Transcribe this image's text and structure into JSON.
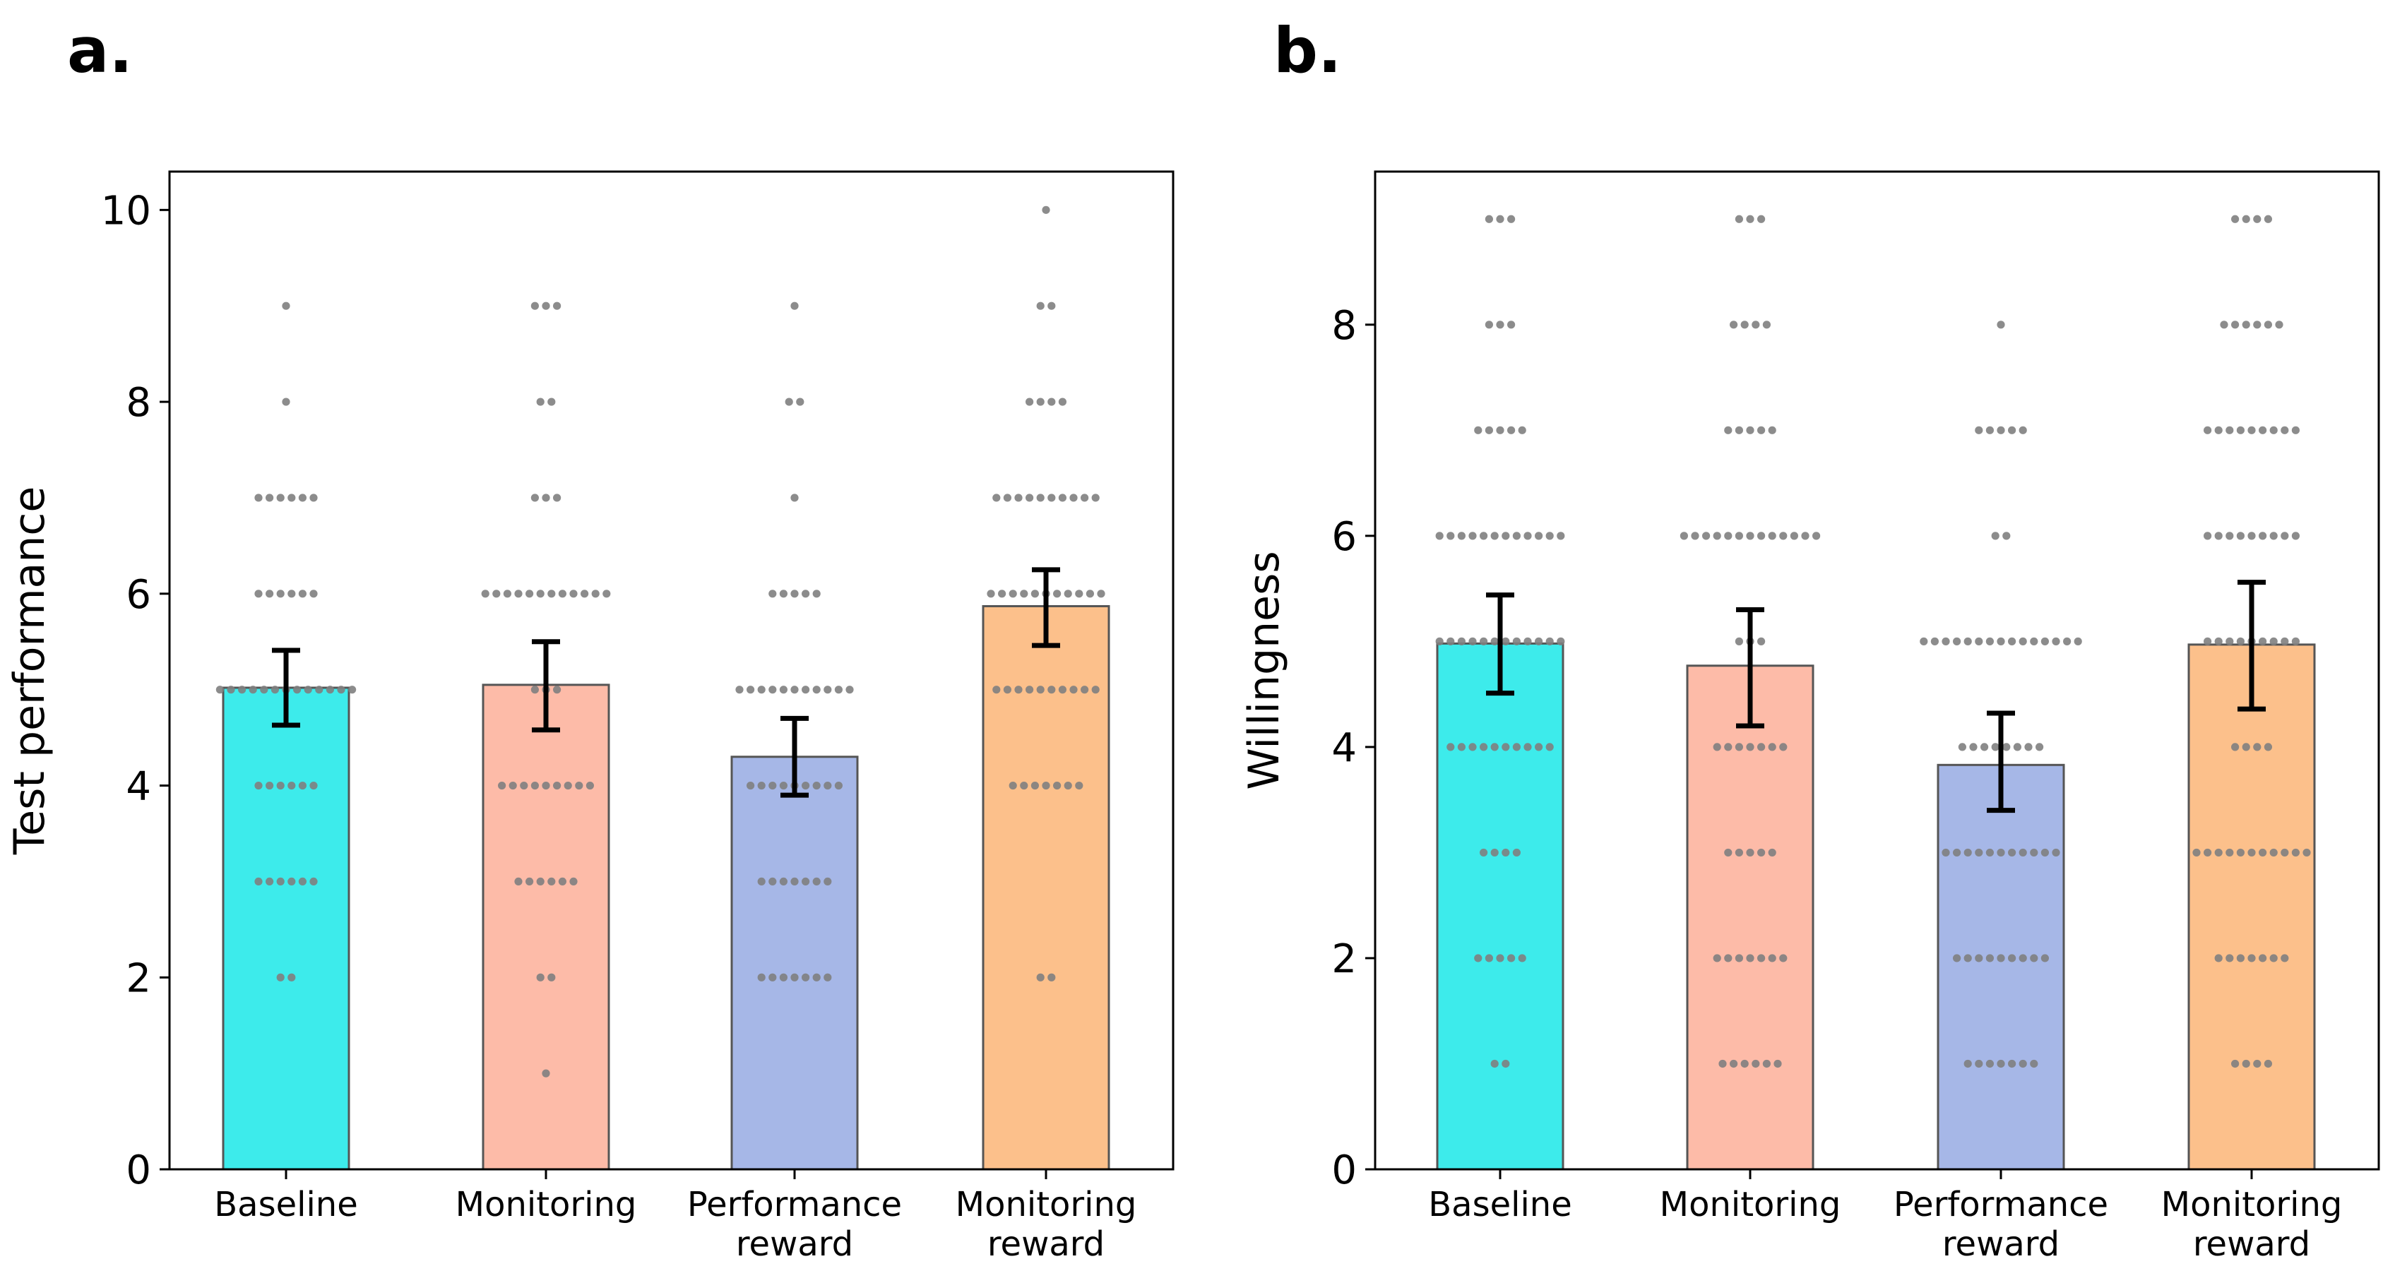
{
  "panel_labels": [
    "a.",
    "b."
  ],
  "colors": {
    "bars": [
      "#00e5e5",
      "#fca68c",
      "#8aa1e0",
      "#fbac66"
    ],
    "dot": "#808080",
    "error": "#000000",
    "bar_edge": "#555555"
  },
  "chart_data": [
    {
      "type": "bar",
      "title": "",
      "xlabel": "",
      "ylabel": "Test performance",
      "ylim": [
        0,
        10.4
      ],
      "yticks": [
        "0",
        "2",
        "4",
        "6",
        "8",
        "10"
      ],
      "categories": [
        [
          "Baseline"
        ],
        [
          "Monitoring"
        ],
        [
          "Performance",
          "reward"
        ],
        [
          "Monitoring",
          "reward"
        ]
      ],
      "values": [
        5.02,
        5.05,
        4.3,
        5.87
      ],
      "error_low": [
        4.63,
        4.58,
        3.9,
        5.46
      ],
      "error_high": [
        5.41,
        5.5,
        4.7,
        6.25
      ],
      "points": [
        {
          "2": 2,
          "3": 6,
          "4": 6,
          "5": 13,
          "6": 6,
          "7": 6,
          "8": 1,
          "9": 1
        },
        {
          "1": 1,
          "2": 2,
          "3": 6,
          "4": 9,
          "5": 3,
          "6": 12,
          "7": 3,
          "8": 2,
          "9": 3
        },
        {
          "2": 7,
          "3": 7,
          "4": 9,
          "5": 11,
          "6": 5,
          "7": 1,
          "8": 2,
          "9": 1
        },
        {
          "2": 2,
          "4": 7,
          "5": 10,
          "6": 11,
          "7": 10,
          "8": 4,
          "9": 2,
          "10": 1
        }
      ]
    },
    {
      "type": "bar",
      "title": "",
      "xlabel": "",
      "ylabel": "Willingness",
      "ylim": [
        0,
        9.45
      ],
      "yticks": [
        "0",
        "2",
        "4",
        "6",
        "8"
      ],
      "categories": [
        [
          "Baseline"
        ],
        [
          "Monitoring"
        ],
        [
          "Performance",
          "reward"
        ],
        [
          "Monitoring",
          "reward"
        ]
      ],
      "values": [
        4.98,
        4.77,
        3.83,
        4.97
      ],
      "error_low": [
        4.51,
        4.2,
        3.4,
        4.36
      ],
      "error_high": [
        5.44,
        5.3,
        4.32,
        5.56
      ],
      "points": [
        {
          "1": 2,
          "2": 5,
          "3": 4,
          "4": 10,
          "5": 12,
          "6": 12,
          "7": 5,
          "8": 3,
          "9": 3
        },
        {
          "1": 6,
          "2": 7,
          "3": 5,
          "4": 7,
          "5": 3,
          "6": 13,
          "7": 5,
          "8": 4,
          "9": 3
        },
        {
          "1": 7,
          "2": 9,
          "3": 11,
          "4": 8,
          "5": 15,
          "6": 2,
          "7": 5,
          "8": 1
        },
        {
          "1": 4,
          "2": 7,
          "3": 11,
          "4": 4,
          "5": 9,
          "6": 9,
          "7": 9,
          "8": 6,
          "9": 4
        }
      ]
    }
  ]
}
